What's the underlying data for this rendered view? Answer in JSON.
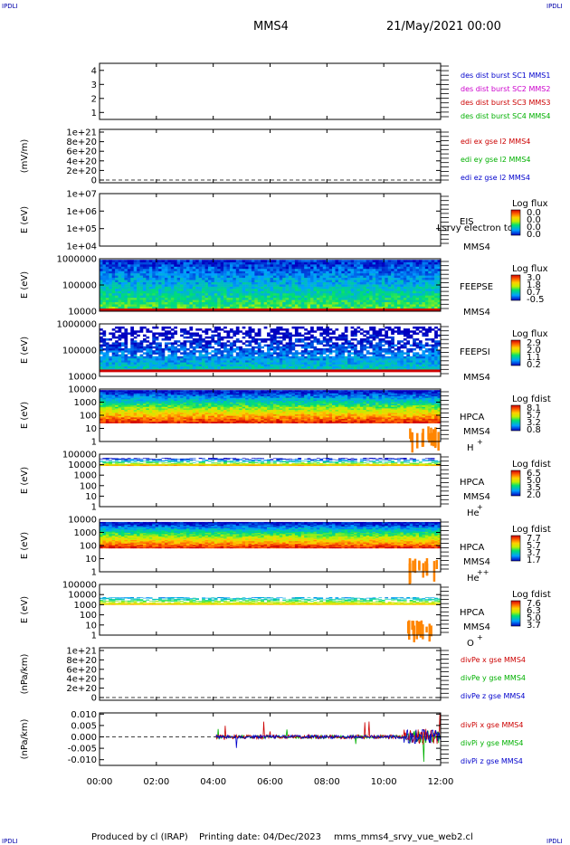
{
  "corner_mark": "IPDLI",
  "header": {
    "spacecraft": "MMS4",
    "datetime": "21/May/2021 00:00"
  },
  "footer": {
    "produced_by": "Produced by cl (IRAP)",
    "printing_date": "Printing date: 04/Dec/2023",
    "filename": "mms_mms4_srvy_vue_web2.cl"
  },
  "colors": {
    "blue": "#0000cc",
    "magenta": "#cc00cc",
    "red": "#cc0000",
    "green": "#00b000"
  },
  "chart_data": {
    "type": "heatmap",
    "x_ticks": [
      "00:00",
      "02:00",
      "04:00",
      "06:00",
      "08:00",
      "10:00",
      "12:00"
    ],
    "x_range_hours": [
      0,
      12
    ],
    "panels": [
      {
        "id": "burst",
        "type": "table",
        "y_ticks": [
          "4",
          "3",
          "2",
          "1"
        ],
        "ylim": [
          0.5,
          4.5
        ],
        "legend": [
          {
            "text": "des dist burst SC1 MMS1",
            "color": "#0000cc"
          },
          {
            "text": "des dist burst SC2 MMS2",
            "color": "#cc00cc"
          },
          {
            "text": "des dist burst SC3 MMS3",
            "color": "#cc0000"
          },
          {
            "text": "des dist burst SC4 MMS4",
            "color": "#00b000"
          }
        ]
      },
      {
        "id": "edi",
        "type": "line",
        "ylabel": "(mV/m)",
        "y_ticks": [
          "1e+21",
          "8e+20",
          "6e+20",
          "4e+20",
          "2e+20",
          "0"
        ],
        "ylim": [
          0,
          1e+21
        ],
        "legend": [
          {
            "text": "edi ex gse l2 MMS4",
            "color": "#cc0000"
          },
          {
            "text": "edi ey gse l2 MMS4",
            "color": "#00b000"
          },
          {
            "text": "edi ez gse l2 MMS4",
            "color": "#0000cc"
          }
        ]
      },
      {
        "id": "eis",
        "type": "heatmap",
        "ylabel": "E (eV)",
        "y_ticks": [
          "1e+07",
          "1e+06",
          "1e+05",
          "1e+04"
        ],
        "ylim": [
          10000.0,
          10000000.0
        ],
        "scale": "log",
        "instrument": "EIS",
        "species": "MMS4",
        "overlay_text": "Lsrvy electron to",
        "colorbar_title": "Log flux",
        "colorbar_ticks": [
          "0.0",
          "0.0",
          "0.0",
          "0.0"
        ]
      },
      {
        "id": "feepse",
        "type": "heatmap",
        "ylabel": "E (eV)",
        "y_ticks": [
          "1000000",
          "100000",
          "10000"
        ],
        "ylim": [
          10000,
          1000000
        ],
        "scale": "log",
        "instrument": "FEEPSE",
        "species": "MMS4",
        "colorbar_title": "Log flux",
        "colorbar_ticks": [
          "3.0",
          "1.8",
          "0.7",
          "-0.5"
        ]
      },
      {
        "id": "feepsi",
        "type": "heatmap",
        "ylabel": "E (eV)",
        "y_ticks": [
          "1000000",
          "100000",
          "10000"
        ],
        "ylim": [
          10000,
          1000000
        ],
        "scale": "log",
        "instrument": "FEEPSI",
        "species": "MMS4",
        "colorbar_title": "Log flux",
        "colorbar_ticks": [
          "2.9",
          "2.0",
          "1.1",
          "0.2"
        ]
      },
      {
        "id": "hpca_h",
        "type": "heatmap",
        "ylabel": "E (eV)",
        "y_ticks": [
          "10000",
          "1000",
          "100",
          "10",
          "1"
        ],
        "ylim": [
          1,
          10000
        ],
        "scale": "log",
        "instrument": "HPCA",
        "species": "MMS4",
        "ion": "H",
        "ion_charge": "+",
        "colorbar_title": "Log fdist",
        "colorbar_ticks": [
          "8.1",
          "5.7",
          "3.2",
          "0.8"
        ]
      },
      {
        "id": "hpca_he1",
        "type": "heatmap",
        "ylabel": "E (eV)",
        "y_ticks": [
          "100000",
          "10000",
          "1000",
          "100",
          "10",
          "1"
        ],
        "ylim": [
          1,
          100000
        ],
        "scale": "log",
        "instrument": "HPCA",
        "species": "MMS4",
        "ion": "He",
        "ion_charge": "+",
        "colorbar_title": "Log fdist",
        "colorbar_ticks": [
          "6.5",
          "5.0",
          "3.5",
          "2.0"
        ]
      },
      {
        "id": "hpca_he2",
        "type": "heatmap",
        "ylabel": "E (eV)",
        "y_ticks": [
          "10000",
          "1000",
          "100",
          "10",
          "1"
        ],
        "ylim": [
          1,
          10000
        ],
        "scale": "log",
        "instrument": "HPCA",
        "species": "MMS4",
        "ion": "He",
        "ion_charge": "++",
        "colorbar_title": "Log fdist",
        "colorbar_ticks": [
          "7.7",
          "5.7",
          "3.7",
          "1.7"
        ]
      },
      {
        "id": "hpca_o",
        "type": "heatmap",
        "ylabel": "E (eV)",
        "y_ticks": [
          "100000",
          "10000",
          "1000",
          "100",
          "10",
          "1"
        ],
        "ylim": [
          1,
          100000
        ],
        "scale": "log",
        "instrument": "HPCA",
        "species": "MMS4",
        "ion": "O",
        "ion_charge": "+",
        "colorbar_title": "Log fdist",
        "colorbar_ticks": [
          "7.6",
          "6.3",
          "5.0",
          "3.7"
        ]
      },
      {
        "id": "divpe",
        "type": "line",
        "ylabel": "(nPa/km)",
        "y_ticks": [
          "1e+21",
          "8e+20",
          "6e+20",
          "4e+20",
          "2e+20",
          "0"
        ],
        "ylim": [
          0,
          1e+21
        ],
        "legend": [
          {
            "text": "divPe x gse MMS4",
            "color": "#cc0000"
          },
          {
            "text": "divPe y gse MMS4",
            "color": "#00b000"
          },
          {
            "text": "divPe z gse MMS4",
            "color": "#0000cc"
          }
        ]
      },
      {
        "id": "divpi",
        "type": "line",
        "ylabel": "(nPa/km)",
        "y_ticks": [
          "0.010",
          "0.005",
          "0.000",
          "-0.005",
          "-0.010"
        ],
        "ylim": [
          -0.0125,
          0.0105
        ],
        "x_data_start_hours": 4.1,
        "legend": [
          {
            "text": "divPi x gse MMS4",
            "color": "#cc0000"
          },
          {
            "text": "divPi y gse MMS4",
            "color": "#00b000"
          },
          {
            "text": "divPi z gse MMS4",
            "color": "#0000cc"
          }
        ]
      }
    ]
  }
}
